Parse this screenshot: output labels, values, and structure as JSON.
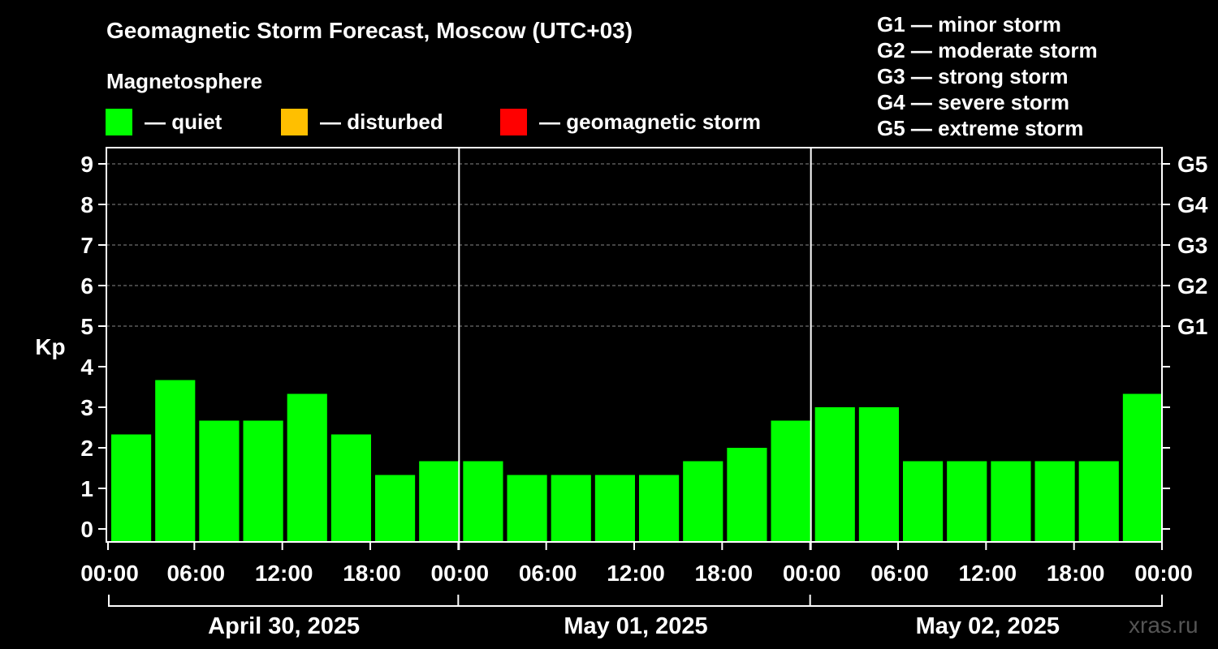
{
  "title": "Geomagnetic Storm Forecast, Moscow (UTC+03)",
  "subtitle": "Magnetosphere",
  "legend": [
    {
      "label": "— quiet",
      "color": "#00ff00"
    },
    {
      "label": "— disturbed",
      "color": "#ffbf00"
    },
    {
      "label": "— geomagnetic storm",
      "color": "#ff0000"
    }
  ],
  "g_scale": [
    "G1 — minor storm",
    "G2 — moderate storm",
    "G3 — strong storm",
    "G4 — severe storm",
    "G5 — extreme storm"
  ],
  "credit": "xras.ru",
  "chart_data": {
    "type": "bar",
    "ylabel": "Kp",
    "ylim": [
      0,
      9.6
    ],
    "y_ticks": [
      0,
      1,
      2,
      3,
      4,
      5,
      6,
      7,
      8,
      9
    ],
    "right_axis_labels": [
      {
        "kp": 5,
        "label": "G1"
      },
      {
        "kp": 6,
        "label": "G2"
      },
      {
        "kp": 7,
        "label": "G3"
      },
      {
        "kp": 8,
        "label": "G4"
      },
      {
        "kp": 9,
        "label": "G5"
      }
    ],
    "x_tick_labels": [
      "00:00",
      "06:00",
      "12:00",
      "18:00",
      "00:00",
      "06:00",
      "12:00",
      "18:00",
      "00:00",
      "06:00",
      "12:00",
      "18:00",
      "00:00"
    ],
    "days": [
      "April 30, 2025",
      "May 01, 2025",
      "May 02, 2025"
    ],
    "grid": "dashed horizontal lines at Kp 5-9",
    "bar_color": "#00ff00",
    "values": [
      2.33,
      3.67,
      2.67,
      2.67,
      3.33,
      2.33,
      1.33,
      1.67,
      1.67,
      1.33,
      1.33,
      1.33,
      1.33,
      1.67,
      2.0,
      2.67,
      3.0,
      3.0,
      1.67,
      1.67,
      1.67,
      1.67,
      1.67,
      3.33
    ]
  }
}
